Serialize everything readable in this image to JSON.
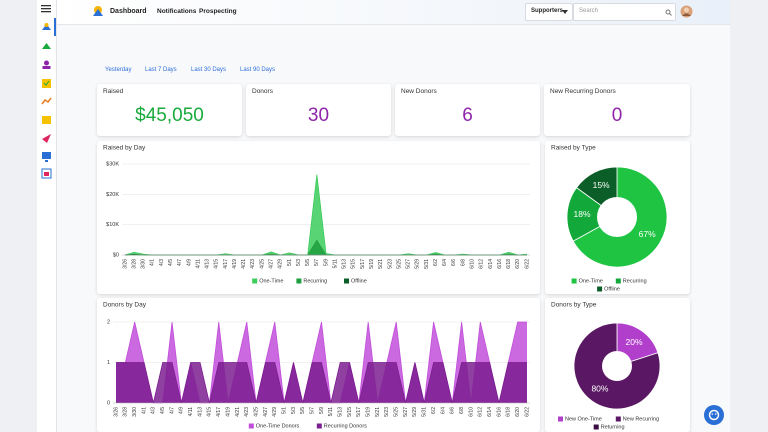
{
  "header": {
    "title": "Dashboard",
    "nav": [
      "Notifications",
      "Prospecting"
    ],
    "dropdown": "Supporters",
    "search_placeholder": "Search"
  },
  "filters": [
    "Yesterday",
    "Last 7 Days",
    "Last 30 Days",
    "Last 90 Days"
  ],
  "kpis": [
    {
      "label": "Raised",
      "value": "$45,050"
    },
    {
      "label": "Donors",
      "value": "30"
    },
    {
      "label": "New Donors",
      "value": "6"
    },
    {
      "label": "New Recurring Donors",
      "value": "0"
    }
  ],
  "chart_data": [
    {
      "type": "area",
      "title": "Raised by Day",
      "categories": [
        "3/26",
        "3/28",
        "3/30",
        "4/1",
        "4/3",
        "4/5",
        "4/7",
        "4/9",
        "4/11",
        "4/13",
        "4/15",
        "4/17",
        "4/19",
        "4/21",
        "4/23",
        "4/25",
        "4/27",
        "4/29",
        "5/1",
        "5/3",
        "5/5",
        "5/7",
        "5/9",
        "5/11",
        "5/13",
        "5/15",
        "5/17",
        "5/19",
        "5/21",
        "5/23",
        "5/25",
        "5/27",
        "5/29",
        "5/31",
        "6/2",
        "6/4",
        "6/6",
        "6/8",
        "6/10",
        "6/12",
        "6/14",
        "6/16",
        "6/18",
        "6/20",
        "6/22"
      ],
      "series": [
        {
          "name": "One-Time",
          "color": "#3ccc5c",
          "values": [
            0,
            900,
            300,
            0,
            0,
            0,
            0,
            0,
            0,
            0,
            0,
            400,
            0,
            0,
            0,
            0,
            1000,
            0,
            700,
            0,
            0,
            26500,
            500,
            0,
            0,
            0,
            0,
            0,
            0,
            0,
            0,
            400,
            0,
            0,
            800,
            0,
            0,
            300,
            0,
            0,
            0,
            0,
            900,
            0,
            300
          ]
        },
        {
          "name": "Recurring",
          "color": "#1f9e3d",
          "values": [
            0,
            0,
            0,
            0,
            0,
            0,
            0,
            0,
            0,
            0,
            0,
            0,
            0,
            0,
            0,
            0,
            300,
            0,
            0,
            0,
            0,
            4800,
            0,
            0,
            0,
            0,
            0,
            0,
            0,
            0,
            0,
            0,
            0,
            0,
            300,
            0,
            0,
            0,
            0,
            0,
            0,
            0,
            300,
            0,
            0
          ]
        },
        {
          "name": "Offline",
          "color": "#0b5e27",
          "values": [
            0,
            200,
            0,
            0,
            0,
            0,
            0,
            0,
            0,
            0,
            0,
            0,
            0,
            0,
            0,
            0,
            0,
            0,
            0,
            0,
            0,
            0,
            0,
            0,
            0,
            0,
            0,
            0,
            0,
            0,
            0,
            0,
            0,
            0,
            0,
            0,
            0,
            0,
            0,
            0,
            0,
            0,
            0,
            0,
            0
          ]
        }
      ],
      "ylim": [
        0,
        30000
      ],
      "yticks": [
        {
          "value": 0,
          "label": "$0"
        },
        {
          "value": 10000,
          "label": "$10K"
        },
        {
          "value": 20000,
          "label": "$20K"
        },
        {
          "value": 30000,
          "label": "$30K"
        }
      ],
      "grid": true
    },
    {
      "type": "pie",
      "title": "Raised by Type",
      "categories": [
        "One-Time",
        "Recurring",
        "Offline"
      ],
      "values": [
        67,
        18,
        15
      ],
      "value_labels": [
        "67%",
        "18%",
        "15%"
      ],
      "colors": [
        "#1fc443",
        "#12a93a",
        "#0b5e27"
      ]
    },
    {
      "type": "area",
      "title": "Donors by Day",
      "categories": [
        "3/26",
        "3/28",
        "3/30",
        "4/1",
        "4/3",
        "4/5",
        "4/7",
        "4/9",
        "4/11",
        "4/13",
        "4/15",
        "4/17",
        "4/19",
        "4/21",
        "4/23",
        "4/25",
        "4/27",
        "4/29",
        "5/1",
        "5/3",
        "5/5",
        "5/7",
        "5/9",
        "5/11",
        "5/13",
        "5/15",
        "5/17",
        "5/19",
        "5/21",
        "5/23",
        "5/25",
        "5/27",
        "5/29",
        "5/31",
        "6/2",
        "6/4",
        "6/6",
        "6/8",
        "6/10",
        "6/12",
        "6/14",
        "6/16",
        "6/18",
        "6/20",
        "6/22"
      ],
      "series": [
        {
          "name": "One-Time Donors",
          "color": "#c24fdb",
          "values": [
            1,
            1,
            2,
            1,
            0,
            0,
            2,
            0,
            1,
            0,
            0,
            2,
            0,
            1,
            2,
            0,
            1,
            2,
            0,
            1,
            0,
            1,
            2,
            0,
            0,
            1,
            0,
            2,
            0,
            1,
            2,
            0,
            1,
            0,
            2,
            1,
            0,
            2,
            0,
            2,
            1,
            0,
            1,
            2,
            2
          ]
        },
        {
          "name": "Recurring Donors",
          "color": "#7b1f8f",
          "values": [
            1,
            1,
            1,
            1,
            0,
            1,
            1,
            0,
            1,
            1,
            0,
            1,
            1,
            1,
            1,
            0,
            1,
            1,
            0,
            1,
            0,
            1,
            1,
            0,
            1,
            1,
            0,
            1,
            1,
            1,
            1,
            0,
            1,
            0,
            1,
            1,
            0,
            1,
            1,
            1,
            1,
            0,
            1,
            1,
            1
          ]
        }
      ],
      "ylim": [
        0,
        2
      ],
      "yticks": [
        0,
        1,
        2
      ],
      "grid": true
    },
    {
      "type": "pie",
      "title": "Donors by Type",
      "categories": [
        "New One-Time",
        "New Recurring",
        "Returning"
      ],
      "values": [
        20,
        80,
        0
      ],
      "value_labels": [
        "20%",
        "80%",
        null
      ],
      "colors": [
        "#b23fcc",
        "#5a1763",
        "#3a0d42"
      ]
    }
  ]
}
